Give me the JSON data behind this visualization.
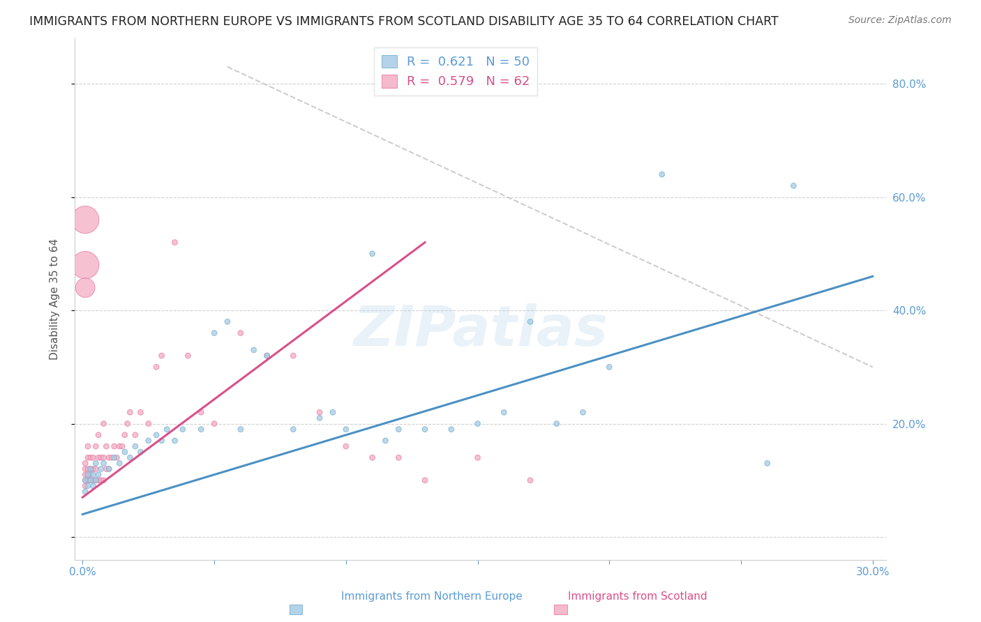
{
  "title": "IMMIGRANTS FROM NORTHERN EUROPE VS IMMIGRANTS FROM SCOTLAND DISABILITY AGE 35 TO 64 CORRELATION CHART",
  "source": "Source: ZipAtlas.com",
  "ylabel": "Disability Age 35 to 64",
  "xlim": [
    -0.003,
    0.305
  ],
  "ylim": [
    -0.04,
    0.88
  ],
  "x_ticks": [
    0.0,
    0.05,
    0.1,
    0.15,
    0.2,
    0.25,
    0.3
  ],
  "x_tick_labels": [
    "0.0%",
    "",
    "",
    "",
    "",
    "",
    "30.0%"
  ],
  "y_ticks": [
    0.0,
    0.2,
    0.4,
    0.6,
    0.8
  ],
  "y_tick_labels": [
    "",
    "20.0%",
    "40.0%",
    "60.0%",
    "80.0%"
  ],
  "grid_color": "#cccccc",
  "background_color": "#ffffff",
  "watermark": "ZIPatlas",
  "blue_color": "#a8cce4",
  "blue_edge_color": "#7ab3d4",
  "pink_color": "#f4aec4",
  "pink_edge_color": "#e882a8",
  "blue_R": 0.621,
  "blue_N": 50,
  "pink_R": 0.579,
  "pink_N": 62,
  "blue_line_color": "#4a90c4",
  "pink_line_color": "#d94f8a",
  "ref_line_color": "#c8c8c8",
  "tick_color": "#5b9bd5",
  "legend_label_blue": "Immigrants from Northern Europe",
  "legend_label_pink": "Immigrants from Scotland",
  "blue_scatter_x": [
    0.001,
    0.001,
    0.002,
    0.002,
    0.003,
    0.003,
    0.004,
    0.004,
    0.005,
    0.005,
    0.006,
    0.007,
    0.008,
    0.01,
    0.012,
    0.014,
    0.016,
    0.018,
    0.02,
    0.022,
    0.025,
    0.028,
    0.03,
    0.032,
    0.035,
    0.038,
    0.045,
    0.05,
    0.055,
    0.06,
    0.065,
    0.07,
    0.08,
    0.09,
    0.095,
    0.1,
    0.11,
    0.115,
    0.12,
    0.13,
    0.14,
    0.15,
    0.16,
    0.17,
    0.18,
    0.19,
    0.2,
    0.22,
    0.26,
    0.27
  ],
  "blue_scatter_y": [
    0.08,
    0.1,
    0.09,
    0.11,
    0.1,
    0.12,
    0.09,
    0.11,
    0.1,
    0.13,
    0.11,
    0.12,
    0.13,
    0.12,
    0.14,
    0.13,
    0.15,
    0.14,
    0.16,
    0.15,
    0.17,
    0.18,
    0.17,
    0.19,
    0.17,
    0.19,
    0.19,
    0.36,
    0.38,
    0.19,
    0.33,
    0.32,
    0.19,
    0.21,
    0.22,
    0.19,
    0.5,
    0.17,
    0.19,
    0.19,
    0.19,
    0.2,
    0.22,
    0.38,
    0.2,
    0.22,
    0.3,
    0.64,
    0.13,
    0.62
  ],
  "blue_scatter_sizes": [
    30,
    30,
    30,
    30,
    30,
    30,
    30,
    30,
    30,
    30,
    30,
    30,
    30,
    30,
    30,
    30,
    30,
    30,
    30,
    30,
    30,
    30,
    30,
    30,
    30,
    30,
    30,
    30,
    30,
    30,
    30,
    30,
    30,
    30,
    30,
    30,
    30,
    30,
    30,
    30,
    30,
    30,
    30,
    30,
    30,
    30,
    30,
    30,
    30,
    30
  ],
  "pink_scatter_x": [
    0.001,
    0.001,
    0.001,
    0.001,
    0.001,
    0.002,
    0.002,
    0.002,
    0.002,
    0.002,
    0.003,
    0.003,
    0.003,
    0.003,
    0.004,
    0.004,
    0.004,
    0.005,
    0.005,
    0.005,
    0.006,
    0.006,
    0.006,
    0.007,
    0.007,
    0.008,
    0.008,
    0.008,
    0.009,
    0.009,
    0.01,
    0.01,
    0.011,
    0.012,
    0.013,
    0.014,
    0.015,
    0.016,
    0.017,
    0.018,
    0.02,
    0.022,
    0.025,
    0.028,
    0.03,
    0.035,
    0.04,
    0.045,
    0.05,
    0.06,
    0.07,
    0.08,
    0.09,
    0.1,
    0.11,
    0.12,
    0.13,
    0.15,
    0.17,
    0.001,
    0.001,
    0.001
  ],
  "pink_scatter_y": [
    0.1,
    0.11,
    0.12,
    0.13,
    0.09,
    0.1,
    0.11,
    0.12,
    0.14,
    0.16,
    0.1,
    0.11,
    0.12,
    0.14,
    0.1,
    0.12,
    0.14,
    0.1,
    0.12,
    0.16,
    0.1,
    0.14,
    0.18,
    0.1,
    0.14,
    0.1,
    0.14,
    0.2,
    0.12,
    0.16,
    0.12,
    0.14,
    0.14,
    0.16,
    0.14,
    0.16,
    0.16,
    0.18,
    0.2,
    0.22,
    0.18,
    0.22,
    0.2,
    0.3,
    0.32,
    0.52,
    0.32,
    0.22,
    0.2,
    0.36,
    0.32,
    0.32,
    0.22,
    0.16,
    0.14,
    0.14,
    0.1,
    0.14,
    0.1,
    0.56,
    0.48,
    0.44
  ],
  "pink_scatter_sizes": [
    30,
    30,
    30,
    30,
    30,
    30,
    30,
    30,
    30,
    30,
    30,
    30,
    30,
    30,
    30,
    30,
    30,
    30,
    30,
    30,
    30,
    30,
    30,
    30,
    30,
    30,
    30,
    30,
    30,
    30,
    30,
    30,
    30,
    30,
    30,
    30,
    30,
    30,
    30,
    30,
    30,
    30,
    30,
    30,
    30,
    30,
    30,
    30,
    30,
    30,
    30,
    30,
    30,
    30,
    30,
    30,
    30,
    30,
    30,
    800,
    800,
    400
  ],
  "blue_line_x": [
    0.0,
    0.3
  ],
  "blue_line_y": [
    0.04,
    0.46
  ],
  "pink_line_x": [
    0.0,
    0.13
  ],
  "pink_line_y": [
    0.07,
    0.52
  ],
  "ref_line_x": [
    0.055,
    0.3
  ],
  "ref_line_y": [
    0.83,
    0.3
  ]
}
